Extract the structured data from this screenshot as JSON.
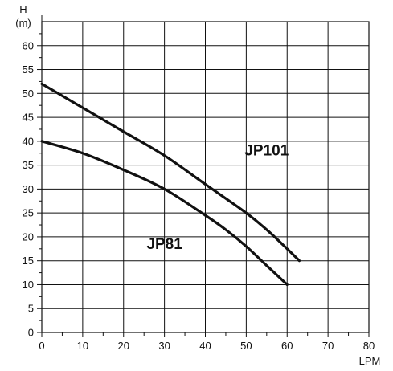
{
  "chart_data": {
    "type": "line",
    "title": "",
    "ylabel_top": "H",
    "ylabel_unit": "(m)",
    "xlabel": "LPM",
    "xlim": [
      0,
      80
    ],
    "ylim": [
      0,
      65
    ],
    "x_ticks": [
      0,
      10,
      20,
      30,
      40,
      50,
      60,
      70,
      80
    ],
    "y_ticks": [
      0,
      5,
      10,
      15,
      20,
      25,
      30,
      35,
      40,
      45,
      50,
      55,
      60
    ],
    "y_minor_step": 2.5,
    "grid": true,
    "series": [
      {
        "name": "JP101",
        "x": [
          0,
          10,
          20,
          30,
          40,
          50,
          55,
          60,
          63
        ],
        "y": [
          52,
          47,
          42,
          37,
          31,
          25,
          21.5,
          17.5,
          15
        ]
      },
      {
        "name": "JP81",
        "x": [
          0,
          10,
          20,
          30,
          40,
          45,
          50,
          55,
          60
        ],
        "y": [
          40,
          37.5,
          34,
          30,
          24.5,
          21.5,
          18,
          14,
          10
        ]
      }
    ],
    "annotations": [
      {
        "text": "JP101",
        "x": 55,
        "y": 37
      },
      {
        "text": "JP81",
        "x": 30,
        "y": 17.5
      }
    ]
  }
}
